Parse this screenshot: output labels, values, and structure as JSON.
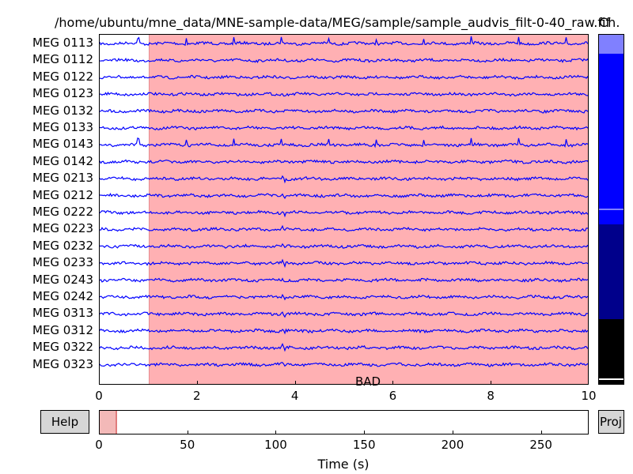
{
  "window": {
    "title": "/home/ubuntu/mne_data/MNE-sample-data/MEG/sample/sample_audvis_filt-0-40_raw.fif",
    "channel_label": "Ch."
  },
  "channels": [
    "MEG 0113",
    "MEG 0112",
    "MEG 0122",
    "MEG 0123",
    "MEG 0132",
    "MEG 0133",
    "MEG 0143",
    "MEG 0142",
    "MEG 0213",
    "MEG 0212",
    "MEG 0222",
    "MEG 0223",
    "MEG 0232",
    "MEG 0233",
    "MEG 0243",
    "MEG 0242",
    "MEG 0313",
    "MEG 0312",
    "MEG 0322",
    "MEG 0323"
  ],
  "main_axis": {
    "xlim": [
      0,
      10
    ],
    "xticks": [
      "0",
      "2",
      "4",
      "6",
      "8",
      "10"
    ],
    "xtick_values": [
      0,
      2,
      4,
      6,
      8,
      10
    ],
    "annotation": {
      "label": "BAD",
      "start": 1.0,
      "end": 10.0,
      "color": "#ffb0b3"
    },
    "trace_color": "#0000ff"
  },
  "time_axis": {
    "xlim": [
      0,
      277
    ],
    "xticks": [
      "0",
      "50",
      "100",
      "150",
      "200",
      "250"
    ],
    "xtick_values": [
      0,
      50,
      100,
      150,
      200,
      250
    ],
    "window_start": 0,
    "window_end": 10,
    "xlabel": "Time (s)"
  },
  "channel_scrollbar": {
    "visible_fraction": 0.054,
    "colors": [
      "#8080ff",
      "#0000ff",
      "#00008b",
      "#000000"
    ]
  },
  "buttons": {
    "help": "Help",
    "proj": "Proj"
  }
}
